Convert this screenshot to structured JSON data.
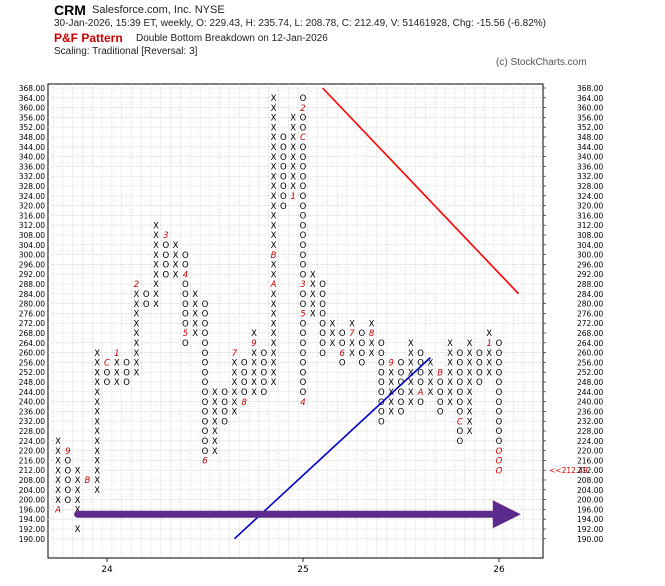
{
  "header": {
    "ticker": "CRM",
    "company": "Salesforce.com, Inc.  NYSE",
    "stats": "30-Jan-2026, 15:39 ET, weekly, O: 229.43, H: 235.74, L: 208.78, C: 212.49, V: 51461928, Chg: -15.56 (-6.82%)",
    "pattern_label": "P&F Pattern",
    "pattern_desc": "Double Bottom Breakdown on 12-Jan-2026",
    "scaling": "Scaling: Traditional [Reversal: 3]",
    "copyright": "(c) StockCharts.com"
  },
  "colors": {
    "x": "#000000",
    "o": "#000000",
    "month_marker": "#cc0000",
    "resistance": "#ff0000",
    "support": "#0000cc",
    "arrow": "#5b2a8c",
    "last_price": "#cc0000",
    "grid": "#c8c8c8"
  },
  "chart_data": {
    "type": "point-and-figure",
    "box_size": 4,
    "reversal": 3,
    "y_ticks": [
      "368.00",
      "364.00",
      "360.00",
      "356.00",
      "352.00",
      "348.00",
      "344.00",
      "340.00",
      "336.00",
      "332.00",
      "328.00",
      "324.00",
      "320.00",
      "316.00",
      "312.00",
      "308.00",
      "304.00",
      "300.00",
      "296.00",
      "292.00",
      "288.00",
      "284.00",
      "280.00",
      "276.00",
      "272.00",
      "268.00",
      "264.00",
      "260.00",
      "256.00",
      "252.00",
      "248.00",
      "244.00",
      "240.00",
      "236.00",
      "232.00",
      "228.00",
      "224.00",
      "220.00",
      "216.00",
      "212.00",
      "208.00",
      "204.00",
      "200.00",
      "196.00",
      "194.00",
      "192.00",
      "190.00"
    ],
    "x_labels": [
      {
        "label": "24",
        "column": 5
      },
      {
        "label": "25",
        "column": 25
      },
      {
        "label": "26",
        "column": 45
      }
    ],
    "columns": [
      {
        "type": "X",
        "low": 196,
        "high": 224,
        "marks": [
          {
            "at": 196,
            "char": "A"
          }
        ]
      },
      {
        "type": "O",
        "low": 200,
        "high": 220,
        "marks": [
          {
            "at": 220,
            "char": "9"
          }
        ]
      },
      {
        "type": "X",
        "low": 192,
        "high": 212
      },
      {
        "type": "O",
        "low": 208,
        "high": 208,
        "marks": [
          {
            "at": 208,
            "char": "B"
          }
        ]
      },
      {
        "type": "X",
        "low": 204,
        "high": 260
      },
      {
        "type": "O",
        "low": 248,
        "high": 256,
        "marks": [
          {
            "at": 256,
            "char": "C"
          }
        ]
      },
      {
        "type": "X",
        "low": 248,
        "high": 260,
        "marks": [
          {
            "at": 260,
            "char": "1"
          }
        ]
      },
      {
        "type": "O",
        "low": 248,
        "high": 256
      },
      {
        "type": "X",
        "low": 252,
        "high": 288,
        "marks": [
          {
            "at": 288,
            "char": "2"
          }
        ]
      },
      {
        "type": "O",
        "low": 280,
        "high": 284
      },
      {
        "type": "X",
        "low": 280,
        "high": 312
      },
      {
        "type": "O",
        "low": 292,
        "high": 308,
        "marks": [
          {
            "at": 308,
            "char": "3"
          }
        ]
      },
      {
        "type": "X",
        "low": 292,
        "high": 304
      },
      {
        "type": "O",
        "low": 264,
        "high": 300,
        "marks": [
          {
            "at": 292,
            "char": "4"
          },
          {
            "at": 268,
            "char": "5"
          }
        ]
      },
      {
        "type": "X",
        "low": 268,
        "high": 284
      },
      {
        "type": "O",
        "low": 216,
        "high": 280,
        "marks": [
          {
            "at": 216,
            "char": "6"
          }
        ]
      },
      {
        "type": "X",
        "low": 220,
        "high": 244
      },
      {
        "type": "O",
        "low": 232,
        "high": 244
      },
      {
        "type": "X",
        "low": 236,
        "high": 260,
        "marks": [
          {
            "at": 260,
            "char": "7"
          }
        ]
      },
      {
        "type": "O",
        "low": 240,
        "high": 256,
        "marks": [
          {
            "at": 240,
            "char": "8"
          }
        ]
      },
      {
        "type": "X",
        "low": 244,
        "high": 268,
        "marks": [
          {
            "at": 264,
            "char": "9"
          }
        ]
      },
      {
        "type": "O",
        "low": 244,
        "high": 260
      },
      {
        "type": "X",
        "low": 248,
        "high": 364,
        "marks": [
          {
            "at": 300,
            "char": "B"
          },
          {
            "at": 288,
            "char": "A"
          }
        ]
      },
      {
        "type": "O",
        "low": 320,
        "high": 348
      },
      {
        "type": "X",
        "low": 324,
        "high": 356,
        "marks": [
          {
            "at": 324,
            "char": "1"
          }
        ]
      },
      {
        "type": "O",
        "low": 240,
        "high": 364,
        "marks": [
          {
            "at": 348,
            "char": "C"
          },
          {
            "at": 360,
            "char": "2"
          },
          {
            "at": 288,
            "char": "3"
          },
          {
            "at": 240,
            "char": "4"
          },
          {
            "at": 276,
            "char": "5"
          }
        ]
      },
      {
        "type": "X",
        "low": 276,
        "high": 292
      },
      {
        "type": "O",
        "low": 260,
        "high": 288
      },
      {
        "type": "X",
        "low": 264,
        "high": 272
      },
      {
        "type": "O",
        "low": 256,
        "high": 268,
        "marks": [
          {
            "at": 260,
            "char": "6"
          }
        ]
      },
      {
        "type": "X",
        "low": 260,
        "high": 272,
        "marks": [
          {
            "at": 268,
            "char": "7"
          }
        ]
      },
      {
        "type": "O",
        "low": 256,
        "high": 268
      },
      {
        "type": "X",
        "low": 260,
        "high": 272,
        "marks": [
          {
            "at": 268,
            "char": "8"
          }
        ]
      },
      {
        "type": "O",
        "low": 232,
        "high": 264
      },
      {
        "type": "X",
        "low": 236,
        "high": 256,
        "marks": [
          {
            "at": 256,
            "char": "9"
          }
        ]
      },
      {
        "type": "O",
        "low": 236,
        "high": 256
      },
      {
        "type": "X",
        "low": 240,
        "high": 264
      },
      {
        "type": "O",
        "low": 240,
        "high": 260,
        "marks": [
          {
            "at": 244,
            "char": "A"
          }
        ]
      },
      {
        "type": "X",
        "low": 244,
        "high": 256
      },
      {
        "type": "O",
        "low": 236,
        "high": 252,
        "marks": [
          {
            "at": 252,
            "char": "B"
          }
        ]
      },
      {
        "type": "X",
        "low": 240,
        "high": 264
      },
      {
        "type": "O",
        "low": 224,
        "high": 260,
        "marks": [
          {
            "at": 232,
            "char": "C"
          }
        ]
      },
      {
        "type": "X",
        "low": 228,
        "high": 264
      },
      {
        "type": "O",
        "low": 248,
        "high": 260
      },
      {
        "type": "X",
        "low": 252,
        "high": 268,
        "marks": [
          {
            "at": 264,
            "char": "1"
          }
        ]
      },
      {
        "type": "O",
        "low": 212,
        "high": 264,
        "marks": [
          {
            "at": 220,
            "char": "O"
          },
          {
            "at": 216,
            "char": "O"
          },
          {
            "at": 212,
            "char": "O"
          }
        ]
      }
    ],
    "last_price": "<<212.49",
    "trendlines": [
      {
        "type": "resistance",
        "from": {
          "column": 27,
          "price": 368
        },
        "to": {
          "column": 47,
          "price": 284
        }
      },
      {
        "type": "support",
        "from": {
          "column": 18,
          "price": 190
        },
        "to": {
          "column": 38,
          "price": 258
        }
      }
    ],
    "arrow": {
      "from": {
        "column": 2,
        "price": 195
      },
      "to": {
        "column": 46,
        "price": 195
      }
    }
  }
}
